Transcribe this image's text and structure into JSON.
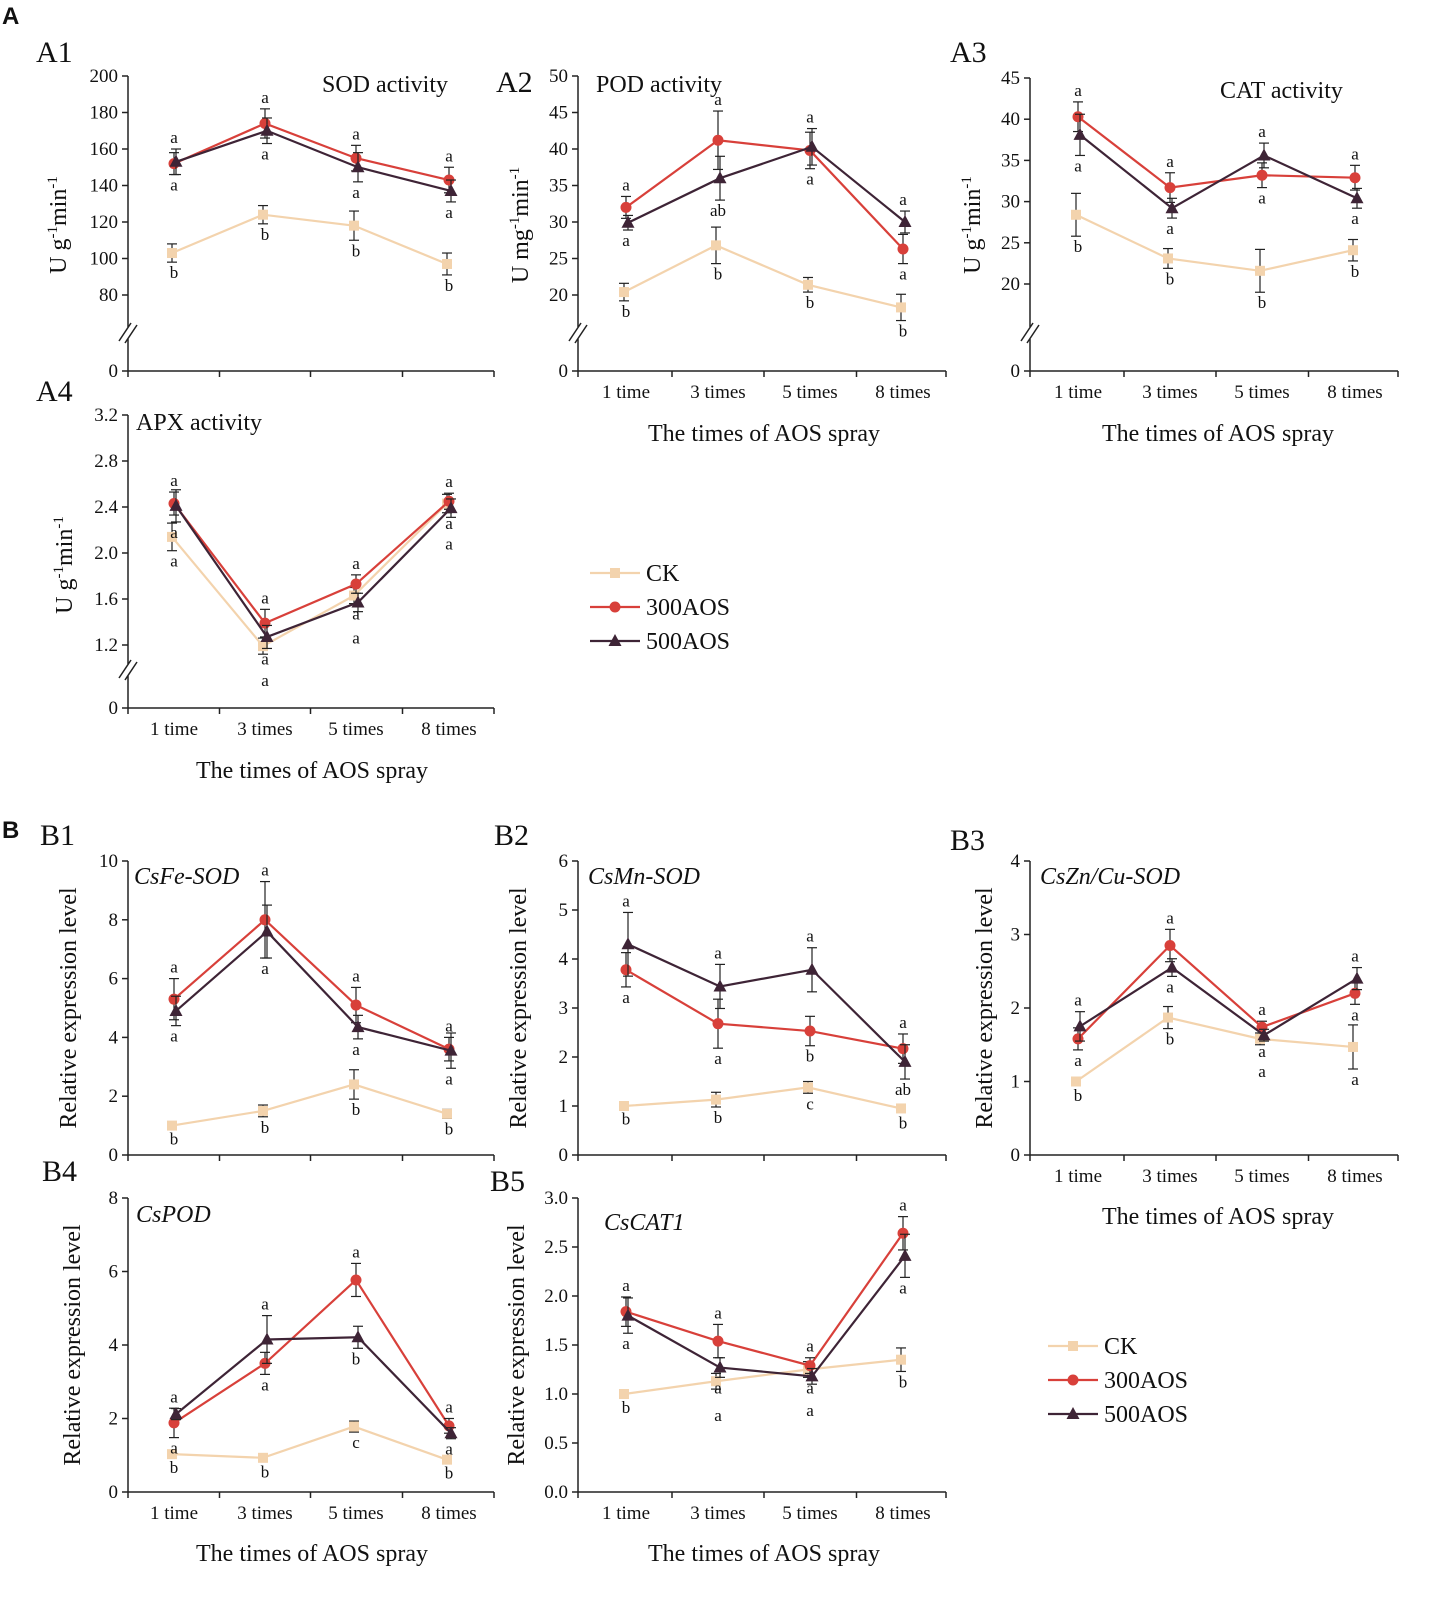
{
  "figure": {
    "section_a_label": "A",
    "section_b_label": "B",
    "x_axis_label": "The times of AOS spray",
    "legend": {
      "entries": [
        {
          "name": "CK",
          "color": "#f3d3ad",
          "marker": "square"
        },
        {
          "name": "300AOS",
          "color": "#d8403a",
          "marker": "circle"
        },
        {
          "name": "500AOS",
          "color": "#3e2436",
          "marker": "triangle"
        }
      ]
    }
  },
  "chart_data": [
    {
      "id": "A1",
      "type": "line",
      "title": "SOD activity",
      "title_italic": false,
      "categories": [
        "1 time",
        "3 times",
        "5 times",
        "8 times"
      ],
      "ylabel_main": "U g",
      "ylabel_sup1": "-1",
      "ylabel_mid": "min",
      "ylabel_sup2": "-1",
      "xlabel": "",
      "ylim": [
        80,
        200
      ],
      "yticks": [
        80,
        100,
        120,
        140,
        160,
        180,
        200
      ],
      "axis_break": true,
      "zero_label": "0",
      "series": [
        {
          "name": "CK",
          "values": [
            103,
            124,
            118,
            97
          ],
          "errors": [
            5,
            5,
            8,
            6
          ],
          "letters": [
            "b",
            "b",
            "b",
            "b"
          ]
        },
        {
          "name": "300AOS",
          "values": [
            152,
            174,
            155,
            143
          ],
          "errors": [
            6,
            8,
            7,
            7
          ],
          "letters": [
            "a",
            "a",
            "a",
            "a"
          ]
        },
        {
          "name": "500AOS",
          "values": [
            153,
            170,
            150,
            137
          ],
          "errors": [
            7,
            7,
            8,
            6
          ],
          "letters": [
            "a",
            "a",
            "a",
            "a"
          ]
        }
      ]
    },
    {
      "id": "A2",
      "type": "line",
      "title": "POD activity",
      "title_italic": false,
      "categories": [
        "1 time",
        "3 times",
        "5 times",
        "8 times"
      ],
      "ylabel_main": "U mg",
      "ylabel_sup1": "-1",
      "ylabel_mid": "min",
      "ylabel_sup2": "-1",
      "xlabel": "The times of AOS spray",
      "ylim": [
        20,
        50
      ],
      "yticks": [
        20,
        25,
        30,
        35,
        40,
        45,
        50
      ],
      "axis_break": true,
      "zero_label": "0",
      "series": [
        {
          "name": "CK",
          "values": [
            20.4,
            26.8,
            21.4,
            18.3
          ],
          "errors": [
            1.2,
            2.5,
            1.0,
            1.8
          ],
          "letters": [
            "b",
            "b",
            "b",
            "b"
          ]
        },
        {
          "name": "300AOS",
          "values": [
            32.0,
            41.2,
            39.8,
            26.3
          ],
          "errors": [
            1.5,
            4.0,
            2.5,
            2.0
          ],
          "letters": [
            "a",
            "a",
            "a",
            "a"
          ]
        },
        {
          "name": "500AOS",
          "values": [
            29.9,
            36.0,
            40.3,
            30.0
          ],
          "errors": [
            1.0,
            3.0,
            2.5,
            1.5
          ],
          "letters": [
            "a",
            "ab",
            "a",
            "a"
          ]
        }
      ]
    },
    {
      "id": "A3",
      "type": "line",
      "title": "CAT activity",
      "title_italic": false,
      "categories": [
        "1 time",
        "3 times",
        "5 times",
        "8 times"
      ],
      "ylabel_main": "U g",
      "ylabel_sup1": "-1",
      "ylabel_mid": "min",
      "ylabel_sup2": "-1",
      "xlabel": "The times of AOS spray",
      "ylim": [
        20,
        45
      ],
      "yticks": [
        20,
        25,
        30,
        35,
        40,
        45
      ],
      "axis_break": true,
      "zero_label": "0",
      "series": [
        {
          "name": "CK",
          "values": [
            28.4,
            23.1,
            21.6,
            24.1
          ],
          "errors": [
            2.6,
            1.2,
            2.6,
            1.3
          ],
          "letters": [
            "b",
            "b",
            "b",
            "b"
          ]
        },
        {
          "name": "300AOS",
          "values": [
            40.3,
            31.7,
            33.2,
            32.9
          ],
          "errors": [
            1.8,
            1.8,
            1.5,
            1.5
          ],
          "letters": [
            "a",
            "a",
            "a",
            "a"
          ]
        },
        {
          "name": "500AOS",
          "values": [
            38.1,
            29.2,
            35.6,
            30.4
          ],
          "errors": [
            2.5,
            1.2,
            1.5,
            1.2
          ],
          "letters": [
            "a",
            "a",
            "a",
            "a"
          ]
        }
      ]
    },
    {
      "id": "A4",
      "type": "line",
      "title": "APX activity",
      "title_italic": false,
      "categories": [
        "1 time",
        "3 times",
        "5 times",
        "8 times"
      ],
      "ylabel_main": "U g",
      "ylabel_sup1": "-1",
      "ylabel_mid": "min",
      "ylabel_sup2": "-1",
      "xlabel": "The times of AOS spray",
      "ylim": [
        1.2,
        3.2
      ],
      "yticks": [
        1.2,
        1.6,
        2.0,
        2.4,
        2.8,
        3.2
      ],
      "axis_break": true,
      "zero_label": "0",
      "series": [
        {
          "name": "CK",
          "values": [
            2.14,
            1.19,
            1.63,
            2.43
          ],
          "errors": [
            0.12,
            0.07,
            0.07,
            0.08
          ],
          "letters": [
            "a",
            "a",
            "a",
            "a"
          ]
        },
        {
          "name": "300AOS",
          "values": [
            2.43,
            1.39,
            1.73,
            2.45
          ],
          "errors": [
            0.1,
            0.12,
            0.08,
            0.07
          ],
          "letters": [
            "a",
            "a",
            "a",
            "a"
          ]
        },
        {
          "name": "500AOS",
          "values": [
            2.41,
            1.27,
            1.57,
            2.39
          ],
          "errors": [
            0.14,
            0.1,
            0.08,
            0.08
          ],
          "letters": [
            "a",
            "a",
            "a",
            "a"
          ]
        }
      ]
    },
    {
      "id": "B1",
      "type": "line",
      "title": "CsFe-SOD",
      "title_italic": true,
      "categories": [
        "1 time",
        "3 times",
        "5 times",
        "8 times"
      ],
      "ylabel_main": "Relative expression level",
      "ylabel_sup1": "",
      "ylabel_mid": "",
      "ylabel_sup2": "",
      "xlabel": "",
      "ylim": [
        0,
        10
      ],
      "yticks": [
        0,
        2,
        4,
        6,
        8,
        10
      ],
      "axis_break": false,
      "zero_label": "",
      "series": [
        {
          "name": "CK",
          "values": [
            1.0,
            1.5,
            2.4,
            1.4
          ],
          "errors": [
            0.1,
            0.2,
            0.5,
            0.15
          ],
          "letters": [
            "b",
            "b",
            "b",
            "b"
          ]
        },
        {
          "name": "300AOS",
          "values": [
            5.3,
            8.0,
            5.1,
            3.6
          ],
          "errors": [
            0.7,
            1.3,
            0.6,
            0.4
          ],
          "letters": [
            "a",
            "a",
            "a",
            "a"
          ]
        },
        {
          "name": "500AOS",
          "values": [
            4.9,
            7.6,
            4.35,
            3.55
          ],
          "errors": [
            0.5,
            0.9,
            0.4,
            0.6
          ],
          "letters": [
            "a",
            "a",
            "a",
            "a"
          ]
        }
      ]
    },
    {
      "id": "B2",
      "type": "line",
      "title": "CsMn-SOD",
      "title_italic": true,
      "categories": [
        "1 time",
        "3 times",
        "5 times",
        "8 times"
      ],
      "ylabel_main": "Relative expression level",
      "ylabel_sup1": "",
      "ylabel_mid": "",
      "ylabel_sup2": "",
      "xlabel": "",
      "ylim": [
        0,
        6
      ],
      "yticks": [
        0,
        1,
        2,
        3,
        4,
        5,
        6
      ],
      "axis_break": false,
      "zero_label": "",
      "series": [
        {
          "name": "CK",
          "values": [
            1.0,
            1.13,
            1.38,
            0.95
          ],
          "errors": [
            0.05,
            0.15,
            0.12,
            0.08
          ],
          "letters": [
            "b",
            "b",
            "c",
            "b"
          ]
        },
        {
          "name": "300AOS",
          "values": [
            3.78,
            2.68,
            2.53,
            2.17
          ],
          "errors": [
            0.35,
            0.5,
            0.3,
            0.3
          ],
          "letters": [
            "a",
            "a",
            "b",
            "a"
          ]
        },
        {
          "name": "500AOS",
          "values": [
            4.3,
            3.44,
            3.78,
            1.9
          ],
          "errors": [
            0.65,
            0.45,
            0.45,
            0.35
          ],
          "letters": [
            "a",
            "a",
            "a",
            "ab"
          ]
        }
      ]
    },
    {
      "id": "B3",
      "type": "line",
      "title": "CsZn/Cu-SOD",
      "title_italic": true,
      "categories": [
        "1 time",
        "3 times",
        "5 times",
        "8 times"
      ],
      "ylabel_main": "Relative expression level",
      "ylabel_sup1": "",
      "ylabel_mid": "",
      "ylabel_sup2": "",
      "xlabel": "The times of AOS spray",
      "ylim": [
        0,
        4
      ],
      "yticks": [
        0,
        1,
        2,
        3,
        4
      ],
      "axis_break": false,
      "zero_label": "",
      "series": [
        {
          "name": "CK",
          "values": [
            1.0,
            1.87,
            1.58,
            1.47
          ],
          "errors": [
            0.05,
            0.15,
            0.08,
            0.3
          ],
          "letters": [
            "b",
            "b",
            "a",
            "a"
          ]
        },
        {
          "name": "300AOS",
          "values": [
            1.58,
            2.85,
            1.74,
            2.2
          ],
          "errors": [
            0.15,
            0.22,
            0.08,
            0.15
          ],
          "letters": [
            "a",
            "a",
            "a",
            "a"
          ]
        },
        {
          "name": "500AOS",
          "values": [
            1.75,
            2.55,
            1.63,
            2.4
          ],
          "errors": [
            0.2,
            0.12,
            0.08,
            0.15
          ],
          "letters": [
            "a",
            "a",
            "a",
            "a"
          ]
        }
      ]
    },
    {
      "id": "B4",
      "type": "line",
      "title": "CsPOD",
      "title_italic": true,
      "categories": [
        "1 time",
        "3 times",
        "5 times",
        "8 times"
      ],
      "ylabel_main": "Relative expression level",
      "ylabel_sup1": "",
      "ylabel_mid": "",
      "ylabel_sup2": "",
      "xlabel": "The times of AOS spray",
      "ylim": [
        0,
        8
      ],
      "yticks": [
        0,
        2,
        4,
        6,
        8
      ],
      "axis_break": false,
      "zero_label": "",
      "series": [
        {
          "name": "CK",
          "values": [
            1.03,
            0.93,
            1.78,
            0.88
          ],
          "errors": [
            0.08,
            0.1,
            0.15,
            0.08
          ],
          "letters": [
            "b",
            "b",
            "c",
            "b"
          ]
        },
        {
          "name": "300AOS",
          "values": [
            1.88,
            3.5,
            5.77,
            1.8
          ],
          "errors": [
            0.4,
            0.3,
            0.45,
            0.2
          ],
          "letters": [
            "a",
            "a",
            "a",
            "a"
          ]
        },
        {
          "name": "500AOS",
          "values": [
            2.12,
            4.15,
            4.21,
            1.6
          ],
          "errors": [
            0.15,
            0.65,
            0.3,
            0.15
          ],
          "letters": [
            "a",
            "a",
            "b",
            "a"
          ]
        }
      ]
    },
    {
      "id": "B5",
      "type": "line",
      "title": "CsCAT1",
      "title_italic": true,
      "categories": [
        "1 time",
        "3 times",
        "5 times",
        "8 times"
      ],
      "ylabel_main": "Relative expression level",
      "ylabel_sup1": "",
      "ylabel_mid": "",
      "ylabel_sup2": "",
      "xlabel": "The times of AOS spray",
      "ylim": [
        0,
        3.0
      ],
      "yticks": [
        0,
        0.5,
        1.0,
        1.5,
        2.0,
        2.5,
        3.0
      ],
      "axis_break": false,
      "zero_label": "",
      "series": [
        {
          "name": "CK",
          "values": [
            1.0,
            1.13,
            1.25,
            1.35
          ],
          "errors": [
            0.03,
            0.08,
            0.08,
            0.12
          ],
          "letters": [
            "b",
            "a",
            "a",
            "b"
          ]
        },
        {
          "name": "300AOS",
          "values": [
            1.84,
            1.54,
            1.29,
            2.64
          ],
          "errors": [
            0.15,
            0.17,
            0.08,
            0.17
          ],
          "letters": [
            "a",
            "a",
            "a",
            "a"
          ]
        },
        {
          "name": "500AOS",
          "values": [
            1.8,
            1.27,
            1.18,
            2.41
          ],
          "errors": [
            0.18,
            0.1,
            0.08,
            0.22
          ],
          "letters": [
            "a",
            "a",
            "a",
            "a"
          ]
        }
      ]
    }
  ]
}
